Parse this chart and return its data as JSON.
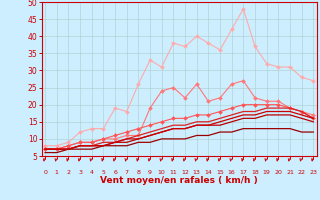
{
  "bg_color": "#cceeff",
  "grid_color": "#aacccc",
  "xlabel": "Vent moyen/en rafales ( km/h )",
  "xlabel_color": "#cc0000",
  "tick_color": "#cc0000",
  "xmin": 0,
  "xmax": 23,
  "ymin": 5,
  "ymax": 50,
  "yticks": [
    5,
    10,
    15,
    20,
    25,
    30,
    35,
    40,
    45,
    50
  ],
  "xticks": [
    0,
    1,
    2,
    3,
    4,
    5,
    6,
    7,
    8,
    9,
    10,
    11,
    12,
    13,
    14,
    15,
    16,
    17,
    18,
    19,
    20,
    21,
    22,
    23
  ],
  "lines": [
    {
      "color": "#ffaaaa",
      "marker": "D",
      "markersize": 2.0,
      "linewidth": 0.8,
      "x": [
        0,
        1,
        2,
        3,
        4,
        5,
        6,
        7,
        8,
        9,
        10,
        11,
        12,
        13,
        14,
        15,
        16,
        17,
        18,
        19,
        20,
        21,
        22,
        23
      ],
      "y": [
        8,
        8,
        9,
        12,
        13,
        13,
        19,
        18,
        26,
        33,
        31,
        38,
        37,
        40,
        38,
        36,
        42,
        48,
        37,
        32,
        31,
        31,
        28,
        27
      ]
    },
    {
      "color": "#ff7777",
      "marker": "D",
      "markersize": 2.0,
      "linewidth": 0.8,
      "x": [
        0,
        1,
        2,
        3,
        4,
        5,
        6,
        7,
        8,
        9,
        10,
        11,
        12,
        13,
        14,
        15,
        16,
        17,
        18,
        19,
        20,
        21,
        22,
        23
      ],
      "y": [
        7,
        7,
        8,
        9,
        9,
        10,
        10,
        11,
        11,
        19,
        24,
        25,
        22,
        26,
        21,
        22,
        26,
        27,
        22,
        21,
        21,
        19,
        18,
        17
      ]
    },
    {
      "color": "#ff5555",
      "marker": "D",
      "markersize": 2.0,
      "linewidth": 0.8,
      "x": [
        0,
        1,
        2,
        3,
        4,
        5,
        6,
        7,
        8,
        9,
        10,
        11,
        12,
        13,
        14,
        15,
        16,
        17,
        18,
        19,
        20,
        21,
        22,
        23
      ],
      "y": [
        7,
        7,
        8,
        9,
        9,
        10,
        11,
        12,
        13,
        14,
        15,
        16,
        16,
        17,
        17,
        18,
        19,
        20,
        20,
        20,
        20,
        19,
        18,
        16
      ]
    },
    {
      "color": "#dd2222",
      "marker": null,
      "linewidth": 0.9,
      "x": [
        0,
        1,
        2,
        3,
        4,
        5,
        6,
        7,
        8,
        9,
        10,
        11,
        12,
        13,
        14,
        15,
        16,
        17,
        18,
        19,
        20,
        21,
        22,
        23
      ],
      "y": [
        7,
        7,
        7,
        8,
        8,
        9,
        9,
        10,
        11,
        12,
        13,
        14,
        14,
        15,
        15,
        16,
        17,
        18,
        18,
        19,
        19,
        19,
        18,
        16
      ]
    },
    {
      "color": "#bb0000",
      "marker": null,
      "linewidth": 0.9,
      "x": [
        0,
        1,
        2,
        3,
        4,
        5,
        6,
        7,
        8,
        9,
        10,
        11,
        12,
        13,
        14,
        15,
        16,
        17,
        18,
        19,
        20,
        21,
        22,
        23
      ],
      "y": [
        7,
        7,
        7,
        8,
        8,
        8,
        9,
        9,
        10,
        11,
        12,
        13,
        13,
        14,
        14,
        14,
        15,
        16,
        16,
        17,
        17,
        17,
        16,
        15
      ]
    },
    {
      "color": "#990000",
      "marker": null,
      "linewidth": 0.9,
      "x": [
        0,
        1,
        2,
        3,
        4,
        5,
        6,
        7,
        8,
        9,
        10,
        11,
        12,
        13,
        14,
        15,
        16,
        17,
        18,
        19,
        20,
        21,
        22,
        23
      ],
      "y": [
        6,
        6,
        7,
        7,
        7,
        8,
        8,
        8,
        9,
        9,
        10,
        10,
        10,
        11,
        11,
        12,
        12,
        13,
        13,
        13,
        13,
        13,
        12,
        12
      ]
    },
    {
      "color": "#cc0000",
      "marker": null,
      "linewidth": 0.9,
      "x": [
        0,
        1,
        2,
        3,
        4,
        5,
        6,
        7,
        8,
        9,
        10,
        11,
        12,
        13,
        14,
        15,
        16,
        17,
        18,
        19,
        20,
        21,
        22,
        23
      ],
      "y": [
        7,
        7,
        7,
        8,
        8,
        8,
        9,
        10,
        10,
        11,
        12,
        13,
        13,
        14,
        14,
        15,
        16,
        17,
        17,
        18,
        18,
        18,
        17,
        16
      ]
    }
  ]
}
